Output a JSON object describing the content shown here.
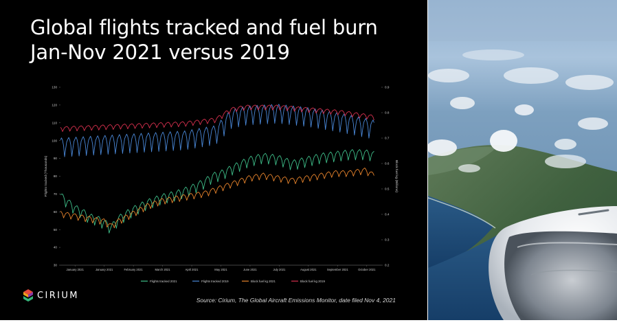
{
  "slide": {
    "title_line1": "Global flights tracked and fuel burn",
    "title_line2": "Jan-Nov 2021 versus 2019",
    "source": "Source: Cirium, The Global Aircraft Emissions Monitor, date filed Nov 4, 2021",
    "logo_text": "CIRIUM"
  },
  "colors": {
    "flights_2021": "#3fbf8a",
    "flights_2019": "#4a88d8",
    "fuel_2021": "#e8842c",
    "fuel_2019": "#d6304e"
  },
  "chart_data": {
    "type": "line",
    "xlabel": "",
    "ylabel": "Flights tracked (Thousands)",
    "y2label": "Block fuel kg (Billions)",
    "ylim": [
      30,
      130
    ],
    "y2lim": [
      0.2,
      0.9
    ],
    "yticks": [
      30,
      40,
      50,
      60,
      70,
      80,
      90,
      100,
      110,
      120,
      130
    ],
    "y2ticks": [
      "0.2",
      "0.3",
      "0.4",
      "0.5",
      "0.6",
      "0.7",
      "0.8",
      "0.9"
    ],
    "x_tick_labels": [
      "January 2021",
      "January 2021",
      "February 2021",
      "March 2021",
      "April 2021",
      "May 2021",
      "June 2021",
      "July 2021",
      "August 2021",
      "September 2021",
      "October 2021"
    ],
    "x_days_range": [
      0,
      310
    ],
    "legend_position": "bottom",
    "grid": false,
    "series": [
      {
        "name": "Flights tracked 2021",
        "axis": "left",
        "anchor_days": [
          0,
          14,
          21,
          28,
          35,
          42,
          49,
          56,
          70,
          84,
          98,
          112,
          126,
          140,
          147,
          154,
          168,
          182,
          196,
          210,
          224,
          238,
          252,
          266,
          280,
          294,
          303
        ],
        "anchor_values": [
          68,
          61,
          59,
          56,
          55,
          53,
          50,
          55,
          60,
          64,
          67,
          69,
          72,
          76,
          79,
          80,
          84,
          88,
          90,
          89,
          86,
          88,
          90,
          91,
          92,
          92,
          91
        ],
        "weekly_amplitude": 6
      },
      {
        "name": "Flights tracked 2019",
        "axis": "left",
        "anchor_days": [
          0,
          30,
          60,
          90,
          120,
          150,
          165,
          180,
          210,
          240,
          270,
          303
        ],
        "anchor_values": [
          96,
          97,
          98,
          99,
          100,
          103,
          112,
          114,
          115,
          113,
          110,
          106
        ],
        "weekly_amplitude": 11
      },
      {
        "name": "Block fuel kg 2021",
        "axis": "right",
        "anchor_days": [
          0,
          28,
          42,
          49,
          56,
          70,
          84,
          98,
          112,
          126,
          140,
          154,
          168,
          182,
          196,
          210,
          224,
          238,
          252,
          266,
          280,
          294,
          303
        ],
        "anchor_values": [
          0.4,
          0.38,
          0.37,
          0.35,
          0.37,
          0.4,
          0.43,
          0.45,
          0.46,
          0.47,
          0.48,
          0.5,
          0.52,
          0.54,
          0.55,
          0.54,
          0.53,
          0.54,
          0.55,
          0.56,
          0.56,
          0.57,
          0.55
        ],
        "weekly_amplitude": 0.025
      },
      {
        "name": "Block fuel kg 2019",
        "axis": "right",
        "anchor_days": [
          0,
          30,
          60,
          90,
          120,
          150,
          165,
          180,
          210,
          240,
          270,
          303
        ],
        "anchor_values": [
          0.735,
          0.74,
          0.745,
          0.75,
          0.755,
          0.77,
          0.81,
          0.82,
          0.82,
          0.81,
          0.8,
          0.78
        ],
        "weekly_amplitude": 0.02
      }
    ]
  }
}
